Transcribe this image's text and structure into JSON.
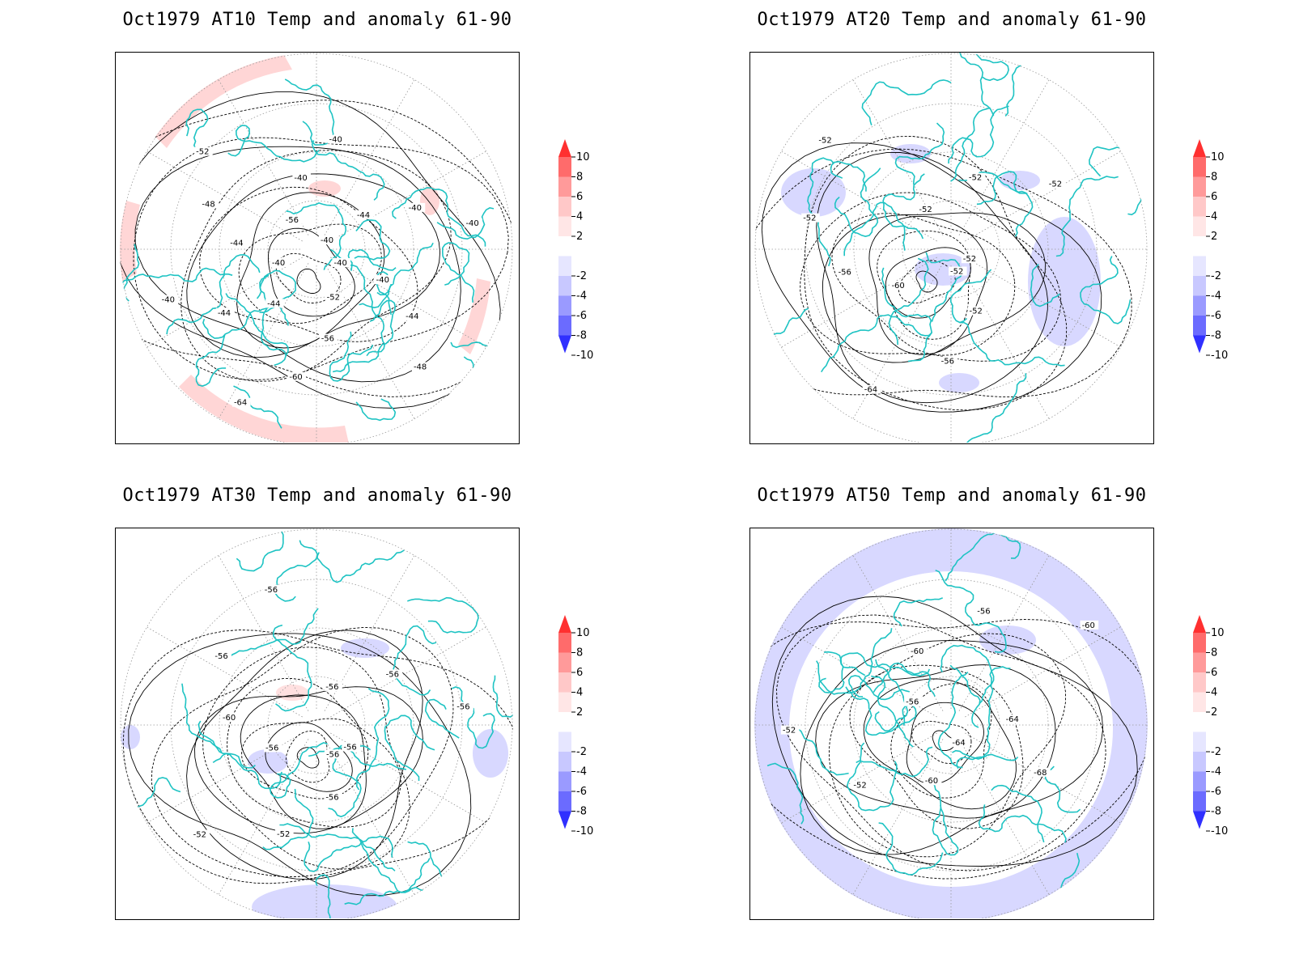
{
  "panels": [
    {
      "title": "Oct1979 AT10 Temp and anomaly 61-90",
      "anomaly_sign": "warm",
      "contour_labels": [
        "-40",
        "-40",
        "-44",
        "-48",
        "-52",
        "-56",
        "-60",
        "-64",
        "-44",
        "-44",
        "-40",
        "-40",
        "-44",
        "-48",
        "-52",
        "-56",
        "-40",
        "-40",
        "-40",
        "-44",
        "-40",
        "-40"
      ]
    },
    {
      "title": "Oct1979 AT20 Temp and anomaly 61-90",
      "anomaly_sign": "cold",
      "contour_labels": [
        "-52",
        "-52",
        "-56",
        "-64",
        "-60",
        "-56",
        "-52",
        "-52",
        "-52",
        "-52",
        "-52",
        "-52"
      ]
    },
    {
      "title": "Oct1979 AT30 Temp and anomaly 61-90",
      "anomaly_sign": "cold",
      "contour_labels": [
        "-56",
        "-56",
        "-52",
        "-52",
        "-56",
        "-60",
        "-56",
        "-56",
        "-56",
        "-56",
        "-56",
        "-56"
      ]
    },
    {
      "title": "Oct1979 AT50 Temp and anomaly 61-90",
      "anomaly_sign": "cold",
      "contour_labels": [
        "-64",
        "-60",
        "-52",
        "-52",
        "-56",
        "-60",
        "-56",
        "-60",
        "-64",
        "-68"
      ]
    }
  ],
  "colorbar": {
    "labels": [
      "10",
      "8",
      "6",
      "4",
      "2",
      "-2",
      "-4",
      "-6",
      "-8",
      "-10"
    ],
    "colors": [
      "#ff3030",
      "#ff6b6b",
      "#ff9a9a",
      "#ffc8c8",
      "#ffe6e6",
      "#ffffff",
      "#e6e6ff",
      "#c8c8ff",
      "#9a9aff",
      "#6b6bff",
      "#3030ff"
    ]
  }
}
